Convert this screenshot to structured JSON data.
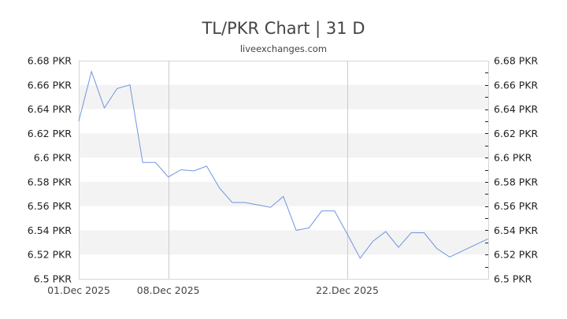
{
  "header": {
    "title": "TL/PKR Chart | 31 D",
    "subtitle": "liveexchanges.com"
  },
  "colors": {
    "line": "#6f95e0",
    "band": "#f3f3f3",
    "border": "#d6d6d6",
    "vgrid": "#cccccc",
    "tick": "#222222"
  },
  "chart_data": {
    "type": "line",
    "title": "TL/PKR Chart | 31 D",
    "subtitle": "liveexchanges.com",
    "xlabel": "",
    "ylabel": "PKR",
    "ylim": [
      6.5,
      6.68
    ],
    "y_ticks": [
      "6.68 PKR",
      "6.66 PKR",
      "6.64 PKR",
      "6.62 PKR",
      "6.6 PKR",
      "6.58 PKR",
      "6.56 PKR",
      "6.54 PKR",
      "6.52 PKR",
      "6.5 PKR"
    ],
    "y_tick_values": [
      6.68,
      6.66,
      6.64,
      6.62,
      6.6,
      6.58,
      6.56,
      6.54,
      6.52,
      6.5
    ],
    "x_ticks": [
      {
        "label": "01.Dec 2025",
        "day": 0
      },
      {
        "label": "08.Dec 2025",
        "day": 7
      },
      {
        "label": "22.Dec 2025",
        "day": 21
      }
    ],
    "grid": "alternating horizontal bands; vertical lines at 08.Dec and 22.Dec",
    "legend": "none",
    "series": [
      {
        "name": "TL/PKR",
        "x": [
          "01.Dec",
          "02.Dec",
          "03.Dec",
          "04.Dec",
          "05.Dec",
          "06.Dec",
          "07.Dec",
          "08.Dec",
          "09.Dec",
          "10.Dec",
          "11.Dec",
          "12.Dec",
          "13.Dec",
          "14.Dec",
          "15.Dec",
          "16.Dec",
          "17.Dec",
          "18.Dec",
          "19.Dec",
          "20.Dec",
          "21.Dec",
          "22.Dec",
          "23.Dec",
          "24.Dec",
          "25.Dec",
          "26.Dec",
          "27.Dec",
          "28.Dec",
          "29.Dec",
          "30.Dec",
          "31.Dec",
          "01.Jan",
          "02.Jan"
        ],
        "values": [
          6.63,
          6.671,
          6.641,
          6.657,
          6.66,
          6.596,
          6.596,
          6.584,
          6.59,
          6.589,
          6.593,
          6.575,
          6.563,
          6.563,
          6.561,
          6.559,
          6.568,
          6.54,
          6.542,
          6.556,
          6.556,
          6.537,
          6.517,
          6.531,
          6.539,
          6.526,
          6.538,
          6.538,
          6.525,
          6.518,
          6.523,
          6.528,
          6.533
        ]
      }
    ]
  }
}
